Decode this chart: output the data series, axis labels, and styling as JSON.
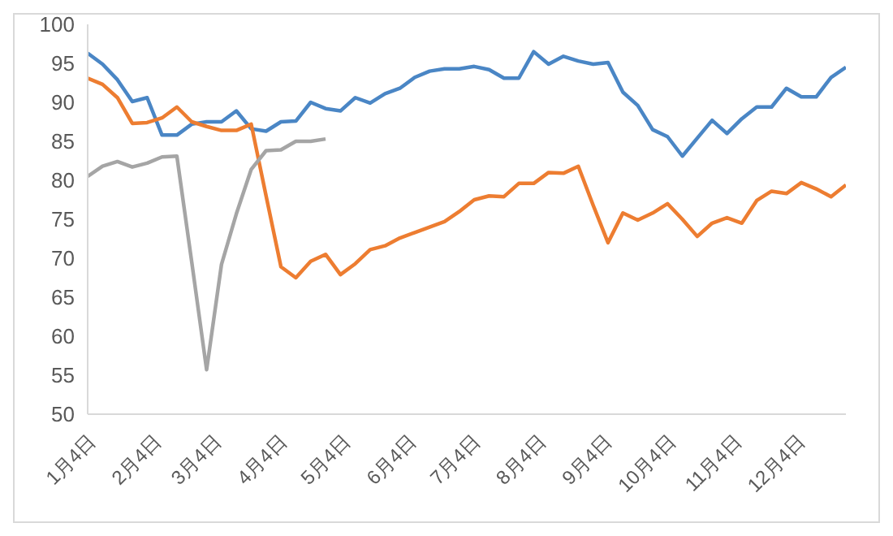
{
  "chart_data": {
    "type": "line",
    "x": [
      "--01-04",
      "--01-11",
      "--01-18",
      "--01-25",
      "--02-01",
      "--02-08",
      "--02-15",
      "--02-22",
      "--03-01",
      "--03-08",
      "--03-15",
      "--03-22",
      "--03-29",
      "--04-05",
      "--04-12",
      "--04-19",
      "--04-26",
      "--05-03",
      "--05-10",
      "--05-17",
      "--05-24",
      "--05-31",
      "--06-07",
      "--06-14",
      "--06-21",
      "--06-28",
      "--07-05",
      "--07-12",
      "--07-19",
      "--07-26",
      "--08-02",
      "--08-09",
      "--08-16",
      "--08-23",
      "--08-30",
      "--09-06",
      "--09-13",
      "--09-20",
      "--09-27",
      "--10-04",
      "--10-11",
      "--10-18",
      "--10-25",
      "--11-01",
      "--11-08",
      "--11-15",
      "--11-22",
      "--11-29",
      "--12-06",
      "--12-13",
      "--12-20",
      "--12-27"
    ],
    "series": [
      {
        "color": "#4a86c5",
        "values": [
          96.3,
          94.9,
          92.9,
          90.1,
          90.6,
          85.8,
          85.8,
          87.2,
          87.5,
          87.5,
          88.9,
          86.6,
          86.3,
          87.5,
          87.6,
          90.0,
          89.2,
          88.9,
          90.6,
          89.9,
          91.1,
          91.8,
          93.2,
          94.0,
          94.3,
          94.3,
          94.6,
          94.2,
          93.1,
          93.1,
          96.5,
          94.9,
          95.9,
          95.3,
          94.9,
          95.1,
          91.3,
          89.6,
          86.5,
          85.6,
          83.1,
          85.4,
          87.7,
          86.0,
          87.9,
          89.4,
          89.4,
          91.8,
          90.7,
          90.7,
          93.2,
          94.5
        ]
      },
      {
        "color": "#ed7d31",
        "values": [
          93.1,
          92.3,
          90.6,
          87.3,
          87.4,
          88.0,
          89.4,
          87.5,
          86.9,
          86.4,
          86.4,
          87.2,
          78.0,
          68.9,
          67.5,
          69.6,
          70.5,
          67.9,
          69.3,
          71.1,
          71.6,
          72.6,
          73.3,
          74.0,
          74.7,
          76.0,
          77.5,
          78.0,
          77.9,
          79.6,
          79.6,
          81.0,
          80.9,
          81.8,
          76.8,
          72.0,
          75.8,
          74.9,
          75.8,
          77.0,
          75.0,
          72.8,
          74.5,
          75.2,
          74.5,
          77.4,
          78.6,
          78.3,
          79.7,
          78.9,
          77.9,
          79.4
        ]
      },
      {
        "color": "#a5a5a5",
        "values": [
          80.5,
          81.8,
          82.4,
          81.7,
          82.2,
          83.0,
          83.1,
          69.5,
          55.7,
          69.2,
          75.7,
          81.4,
          83.8,
          83.9,
          85.0,
          85.0,
          85.3,
          null,
          null,
          null,
          null,
          null,
          null,
          null,
          null,
          null,
          null,
          null,
          null,
          null,
          null,
          null,
          null,
          null,
          null,
          null,
          null,
          null,
          null,
          null,
          null,
          null,
          null,
          null,
          null,
          null,
          null,
          null,
          null,
          null,
          null,
          null
        ]
      }
    ],
    "xlim": [
      "--01-04",
      "--12-27"
    ],
    "xticks": [
      {
        "value": "--01-04",
        "label": "1月4日"
      },
      {
        "value": "--02-04",
        "label": "2月4日"
      },
      {
        "value": "--03-04",
        "label": "3月4日"
      },
      {
        "value": "--04-04",
        "label": "4月4日"
      },
      {
        "value": "--05-04",
        "label": "5月4日"
      },
      {
        "value": "--06-04",
        "label": "6月4日"
      },
      {
        "value": "--07-04",
        "label": "7月4日"
      },
      {
        "value": "--08-04",
        "label": "8月4日"
      },
      {
        "value": "--09-04",
        "label": "9月4日"
      },
      {
        "value": "--10-04",
        "label": "10月4日"
      },
      {
        "value": "--11-04",
        "label": "11月4日"
      },
      {
        "value": "--12-04",
        "label": "12月4日"
      }
    ],
    "ylim": [
      50,
      100
    ],
    "yticks": [
      50,
      55,
      60,
      65,
      70,
      75,
      80,
      85,
      90,
      95,
      100
    ],
    "marker": "none",
    "line_style": "solid"
  }
}
